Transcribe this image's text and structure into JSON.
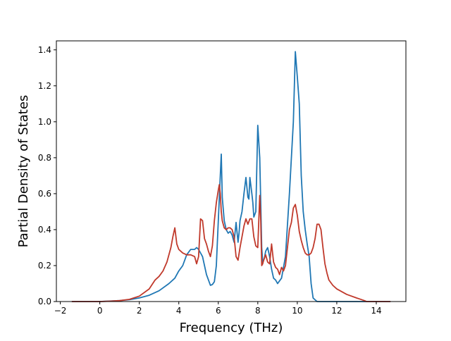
{
  "chart_data": {
    "type": "line",
    "title": "",
    "xlabel": "Frequency (THz)",
    "ylabel": "Partial Density of States",
    "xlim": [
      -2.2,
      15.5
    ],
    "ylim": [
      0,
      1.45
    ],
    "xticks": [
      "−2",
      "0",
      "2",
      "4",
      "6",
      "8",
      "10",
      "12",
      "14"
    ],
    "xtick_values": [
      -2,
      0,
      2,
      4,
      6,
      8,
      10,
      12,
      14
    ],
    "yticks": [
      "0.0",
      "0.2",
      "0.4",
      "0.6",
      "0.8",
      "1.0",
      "1.2",
      "1.4"
    ],
    "ytick_values": [
      0,
      0.2,
      0.4,
      0.6,
      0.8,
      1.0,
      1.2,
      1.4
    ],
    "grid": false,
    "legend": "none",
    "series": [
      {
        "color": "#1f77b4",
        "x": [
          -1.4,
          0.0,
          1.0,
          1.5,
          2.0,
          2.5,
          3.0,
          3.5,
          3.8,
          4.0,
          4.2,
          4.4,
          4.6,
          4.8,
          4.9,
          5.0,
          5.2,
          5.4,
          5.6,
          5.7,
          5.8,
          5.9,
          6.0,
          6.1,
          6.15,
          6.2,
          6.3,
          6.4,
          6.5,
          6.6,
          6.7,
          6.8,
          6.9,
          7.0,
          7.05,
          7.1,
          7.2,
          7.3,
          7.4,
          7.5,
          7.55,
          7.6,
          7.7,
          7.75,
          7.8,
          7.9,
          8.0,
          8.1,
          8.2,
          8.25,
          8.3,
          8.35,
          8.4,
          8.5,
          8.6,
          8.7,
          8.8,
          8.9,
          9.0,
          9.2,
          9.4,
          9.6,
          9.8,
          9.9,
          10.0,
          10.1,
          10.2,
          10.3,
          10.4,
          10.5,
          10.6,
          10.7,
          10.8,
          11.0,
          11.2,
          11.4,
          11.5,
          11.6,
          12.0,
          13.0,
          14.7
        ],
        "y": [
          0.0,
          0.0,
          0.005,
          0.01,
          0.02,
          0.035,
          0.06,
          0.1,
          0.13,
          0.17,
          0.2,
          0.26,
          0.29,
          0.29,
          0.3,
          0.29,
          0.25,
          0.15,
          0.09,
          0.095,
          0.11,
          0.2,
          0.45,
          0.7,
          0.82,
          0.58,
          0.45,
          0.4,
          0.38,
          0.39,
          0.37,
          0.33,
          0.44,
          0.33,
          0.38,
          0.45,
          0.5,
          0.6,
          0.69,
          0.58,
          0.57,
          0.69,
          0.6,
          0.55,
          0.47,
          0.5,
          0.98,
          0.8,
          0.3,
          0.22,
          0.23,
          0.25,
          0.28,
          0.3,
          0.25,
          0.18,
          0.13,
          0.12,
          0.1,
          0.13,
          0.25,
          0.6,
          1.0,
          1.39,
          1.25,
          1.1,
          0.7,
          0.5,
          0.4,
          0.32,
          0.25,
          0.1,
          0.02,
          0.0,
          0.0,
          0.0,
          0.0,
          0.0,
          0.0,
          0.0,
          0.0
        ]
      },
      {
        "color": "#c0392b",
        "x": [
          -1.4,
          0.0,
          0.5,
          1.0,
          1.5,
          2.0,
          2.5,
          2.8,
          3.0,
          3.2,
          3.4,
          3.6,
          3.7,
          3.8,
          3.9,
          4.0,
          4.2,
          4.4,
          4.6,
          4.8,
          4.9,
          5.0,
          5.1,
          5.2,
          5.3,
          5.4,
          5.5,
          5.6,
          5.7,
          5.8,
          5.9,
          6.0,
          6.05,
          6.1,
          6.15,
          6.2,
          6.3,
          6.4,
          6.5,
          6.6,
          6.7,
          6.8,
          6.9,
          7.0,
          7.1,
          7.2,
          7.3,
          7.4,
          7.5,
          7.6,
          7.7,
          7.8,
          7.9,
          8.0,
          8.1,
          8.15,
          8.2,
          8.25,
          8.3,
          8.4,
          8.5,
          8.6,
          8.7,
          8.8,
          8.9,
          9.0,
          9.1,
          9.2,
          9.3,
          9.4,
          9.5,
          9.6,
          9.7,
          9.8,
          9.9,
          10.0,
          10.1,
          10.2,
          10.3,
          10.4,
          10.5,
          10.6,
          10.7,
          10.8,
          10.9,
          11.0,
          11.1,
          11.2,
          11.3,
          11.4,
          11.5,
          11.6,
          11.8,
          12.0,
          12.5,
          13.0,
          13.4,
          13.5,
          14.7
        ],
        "y": [
          0.0,
          0.0,
          0.002,
          0.005,
          0.012,
          0.03,
          0.07,
          0.12,
          0.14,
          0.17,
          0.22,
          0.3,
          0.36,
          0.41,
          0.32,
          0.29,
          0.27,
          0.26,
          0.26,
          0.25,
          0.21,
          0.25,
          0.46,
          0.45,
          0.35,
          0.32,
          0.28,
          0.25,
          0.31,
          0.45,
          0.55,
          0.62,
          0.65,
          0.6,
          0.5,
          0.45,
          0.41,
          0.4,
          0.41,
          0.41,
          0.4,
          0.36,
          0.25,
          0.23,
          0.3,
          0.36,
          0.42,
          0.46,
          0.43,
          0.46,
          0.46,
          0.36,
          0.31,
          0.3,
          0.59,
          0.45,
          0.2,
          0.21,
          0.23,
          0.26,
          0.22,
          0.21,
          0.32,
          0.22,
          0.19,
          0.18,
          0.15,
          0.19,
          0.17,
          0.2,
          0.3,
          0.4,
          0.44,
          0.52,
          0.54,
          0.48,
          0.39,
          0.34,
          0.3,
          0.27,
          0.26,
          0.26,
          0.27,
          0.3,
          0.35,
          0.43,
          0.43,
          0.4,
          0.3,
          0.21,
          0.16,
          0.12,
          0.09,
          0.07,
          0.04,
          0.02,
          0.005,
          0.0,
          0.0
        ]
      }
    ]
  }
}
